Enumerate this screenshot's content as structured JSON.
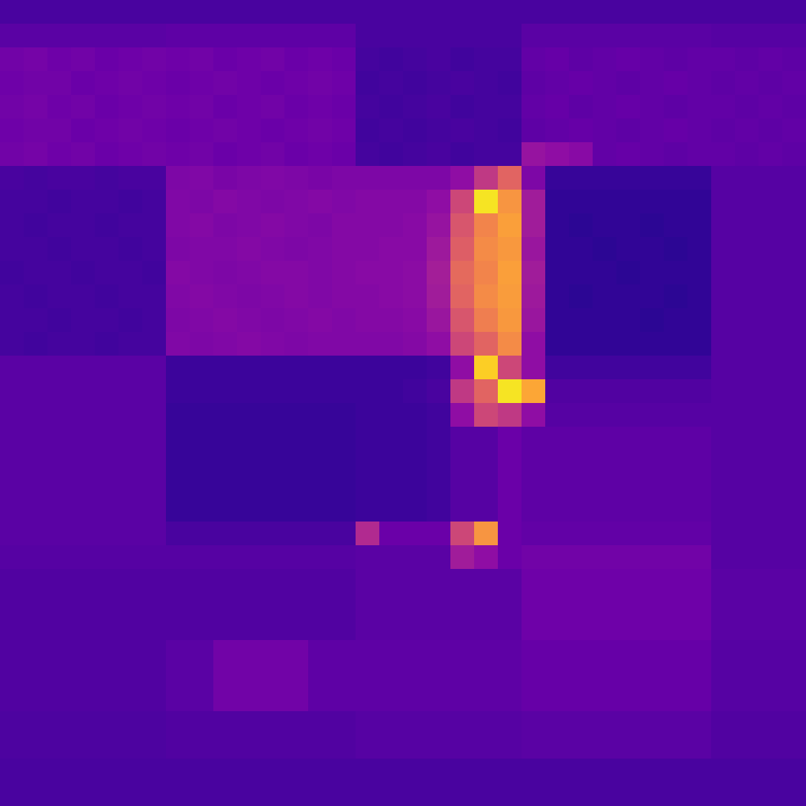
{
  "chart_data": {
    "type": "heatmap",
    "tick_labels": false,
    "zlim": [
      0,
      1
    ],
    "cells": [
      [
        0.12,
        0.12,
        0.12,
        0.12,
        0.12,
        0.12,
        0.12,
        0.12,
        0.12,
        0.12,
        0.12,
        0.12,
        0.12,
        0.12,
        0.12,
        0.12,
        0.12,
        0.12,
        0.12,
        0.12,
        0.12,
        0.12,
        0.12,
        0.12,
        0.12,
        0.12,
        0.12,
        0.12,
        0.12,
        0.12,
        0.12,
        0.12,
        0.12,
        0.12
      ],
      [
        0.16,
        0.16,
        0.16,
        0.16,
        0.16,
        0.16,
        0.16,
        0.17,
        0.17,
        0.17,
        0.17,
        0.17,
        0.17,
        0.17,
        0.17,
        0.12,
        0.12,
        0.12,
        0.12,
        0.12,
        0.12,
        0.12,
        0.16,
        0.16,
        0.16,
        0.16,
        0.16,
        0.16,
        0.16,
        0.16,
        0.15,
        0.15,
        0.15,
        0.15
      ],
      [
        0.22,
        0.23,
        0.21,
        0.22,
        0.2,
        0.21,
        0.22,
        0.21,
        0.22,
        0.2,
        0.21,
        0.22,
        0.2,
        0.21,
        0.2,
        0.11,
        0.1,
        0.11,
        0.12,
        0.1,
        0.11,
        0.11,
        0.18,
        0.19,
        0.17,
        0.18,
        0.19,
        0.18,
        0.17,
        0.18,
        0.18,
        0.17,
        0.18,
        0.17
      ],
      [
        0.21,
        0.22,
        0.22,
        0.2,
        0.21,
        0.22,
        0.21,
        0.2,
        0.21,
        0.22,
        0.21,
        0.2,
        0.21,
        0.22,
        0.21,
        0.1,
        0.11,
        0.1,
        0.11,
        0.12,
        0.11,
        0.1,
        0.17,
        0.18,
        0.19,
        0.18,
        0.17,
        0.18,
        0.19,
        0.18,
        0.17,
        0.18,
        0.17,
        0.18
      ],
      [
        0.22,
        0.23,
        0.21,
        0.22,
        0.2,
        0.21,
        0.22,
        0.21,
        0.22,
        0.2,
        0.21,
        0.22,
        0.2,
        0.21,
        0.2,
        0.11,
        0.1,
        0.11,
        0.12,
        0.1,
        0.11,
        0.11,
        0.18,
        0.19,
        0.17,
        0.18,
        0.19,
        0.18,
        0.17,
        0.18,
        0.18,
        0.17,
        0.18,
        0.17
      ],
      [
        0.21,
        0.22,
        0.22,
        0.2,
        0.21,
        0.22,
        0.21,
        0.2,
        0.21,
        0.22,
        0.21,
        0.2,
        0.21,
        0.22,
        0.21,
        0.1,
        0.11,
        0.1,
        0.11,
        0.12,
        0.11,
        0.1,
        0.17,
        0.18,
        0.19,
        0.18,
        0.17,
        0.18,
        0.19,
        0.18,
        0.17,
        0.18,
        0.17,
        0.18
      ],
      [
        0.22,
        0.23,
        0.21,
        0.22,
        0.2,
        0.21,
        0.22,
        0.21,
        0.22,
        0.2,
        0.21,
        0.22,
        0.2,
        0.21,
        0.2,
        0.11,
        0.1,
        0.11,
        0.12,
        0.1,
        0.11,
        0.11,
        0.32,
        0.3,
        0.28,
        0.18,
        0.19,
        0.18,
        0.17,
        0.18,
        0.18,
        0.17,
        0.18,
        0.17
      ],
      [
        0.12,
        0.11,
        0.12,
        0.12,
        0.11,
        0.12,
        0.12,
        0.25,
        0.26,
        0.24,
        0.25,
        0.26,
        0.25,
        0.24,
        0.25,
        0.25,
        0.25,
        0.25,
        0.25,
        0.3,
        0.45,
        0.6,
        0.25,
        0.08,
        0.08,
        0.08,
        0.08,
        0.08,
        0.08,
        0.08,
        0.15,
        0.15,
        0.15,
        0.15
      ],
      [
        0.11,
        0.11,
        0.1,
        0.11,
        0.11,
        0.1,
        0.11,
        0.26,
        0.25,
        0.27,
        0.26,
        0.25,
        0.26,
        0.27,
        0.26,
        0.27,
        0.27,
        0.27,
        0.3,
        0.5,
        0.95,
        0.75,
        0.35,
        0.07,
        0.07,
        0.07,
        0.07,
        0.07,
        0.07,
        0.07,
        0.15,
        0.15,
        0.15,
        0.15
      ],
      [
        0.11,
        0.1,
        0.11,
        0.11,
        0.1,
        0.11,
        0.11,
        0.26,
        0.27,
        0.25,
        0.26,
        0.27,
        0.26,
        0.25,
        0.27,
        0.27,
        0.27,
        0.28,
        0.32,
        0.55,
        0.7,
        0.78,
        0.35,
        0.07,
        0.06,
        0.07,
        0.07,
        0.06,
        0.07,
        0.07,
        0.15,
        0.15,
        0.15,
        0.15
      ],
      [
        0.11,
        0.11,
        0.1,
        0.11,
        0.11,
        0.1,
        0.11,
        0.25,
        0.26,
        0.26,
        0.27,
        0.26,
        0.25,
        0.26,
        0.27,
        0.27,
        0.28,
        0.28,
        0.34,
        0.58,
        0.72,
        0.76,
        0.33,
        0.07,
        0.07,
        0.06,
        0.07,
        0.07,
        0.06,
        0.07,
        0.15,
        0.15,
        0.15,
        0.15
      ],
      [
        0.1,
        0.11,
        0.11,
        0.1,
        0.11,
        0.11,
        0.1,
        0.27,
        0.26,
        0.25,
        0.26,
        0.27,
        0.27,
        0.26,
        0.27,
        0.28,
        0.28,
        0.29,
        0.36,
        0.62,
        0.7,
        0.78,
        0.35,
        0.07,
        0.07,
        0.07,
        0.06,
        0.07,
        0.07,
        0.07,
        0.15,
        0.15,
        0.15,
        0.15
      ],
      [
        0.11,
        0.1,
        0.11,
        0.11,
        0.1,
        0.11,
        0.11,
        0.26,
        0.27,
        0.26,
        0.25,
        0.26,
        0.27,
        0.26,
        0.27,
        0.27,
        0.28,
        0.29,
        0.35,
        0.6,
        0.72,
        0.77,
        0.34,
        0.07,
        0.06,
        0.07,
        0.07,
        0.07,
        0.06,
        0.07,
        0.15,
        0.15,
        0.15,
        0.15
      ],
      [
        0.11,
        0.11,
        0.1,
        0.11,
        0.11,
        0.1,
        0.11,
        0.25,
        0.26,
        0.27,
        0.26,
        0.25,
        0.26,
        0.27,
        0.26,
        0.27,
        0.27,
        0.28,
        0.33,
        0.55,
        0.68,
        0.76,
        0.33,
        0.07,
        0.07,
        0.07,
        0.07,
        0.06,
        0.07,
        0.07,
        0.15,
        0.15,
        0.15,
        0.15
      ],
      [
        0.11,
        0.1,
        0.11,
        0.11,
        0.1,
        0.11,
        0.11,
        0.26,
        0.25,
        0.26,
        0.27,
        0.26,
        0.25,
        0.26,
        0.26,
        0.26,
        0.26,
        0.27,
        0.3,
        0.5,
        0.6,
        0.72,
        0.3,
        0.07,
        0.07,
        0.07,
        0.07,
        0.07,
        0.07,
        0.07,
        0.15,
        0.15,
        0.15,
        0.15
      ],
      [
        0.16,
        0.16,
        0.16,
        0.16,
        0.16,
        0.16,
        0.16,
        0.09,
        0.09,
        0.09,
        0.09,
        0.09,
        0.09,
        0.09,
        0.09,
        0.09,
        0.09,
        0.09,
        0.1,
        0.3,
        0.9,
        0.5,
        0.3,
        0.1,
        0.1,
        0.1,
        0.1,
        0.1,
        0.1,
        0.1,
        0.15,
        0.15,
        0.15,
        0.15
      ],
      [
        0.16,
        0.16,
        0.16,
        0.16,
        0.16,
        0.16,
        0.16,
        0.09,
        0.09,
        0.09,
        0.09,
        0.09,
        0.09,
        0.09,
        0.09,
        0.09,
        0.09,
        0.1,
        0.12,
        0.45,
        0.6,
        0.95,
        0.8,
        0.14,
        0.14,
        0.14,
        0.14,
        0.14,
        0.14,
        0.14,
        0.15,
        0.15,
        0.15,
        0.15
      ],
      [
        0.16,
        0.16,
        0.16,
        0.16,
        0.16,
        0.16,
        0.16,
        0.08,
        0.08,
        0.08,
        0.08,
        0.08,
        0.08,
        0.08,
        0.08,
        0.09,
        0.09,
        0.09,
        0.1,
        0.3,
        0.5,
        0.45,
        0.3,
        0.15,
        0.15,
        0.15,
        0.15,
        0.15,
        0.15,
        0.15,
        0.15,
        0.15,
        0.15,
        0.15
      ],
      [
        0.16,
        0.16,
        0.16,
        0.16,
        0.16,
        0.16,
        0.16,
        0.08,
        0.08,
        0.08,
        0.08,
        0.08,
        0.08,
        0.08,
        0.08,
        0.09,
        0.09,
        0.09,
        0.1,
        0.15,
        0.15,
        0.2,
        0.17,
        0.17,
        0.17,
        0.17,
        0.17,
        0.17,
        0.17,
        0.17,
        0.15,
        0.15,
        0.15,
        0.15
      ],
      [
        0.16,
        0.16,
        0.16,
        0.16,
        0.16,
        0.16,
        0.16,
        0.08,
        0.08,
        0.08,
        0.08,
        0.08,
        0.08,
        0.08,
        0.08,
        0.09,
        0.09,
        0.09,
        0.1,
        0.15,
        0.15,
        0.2,
        0.17,
        0.17,
        0.17,
        0.17,
        0.17,
        0.17,
        0.17,
        0.17,
        0.15,
        0.15,
        0.15,
        0.15
      ],
      [
        0.16,
        0.16,
        0.16,
        0.16,
        0.16,
        0.16,
        0.16,
        0.08,
        0.08,
        0.08,
        0.08,
        0.08,
        0.08,
        0.08,
        0.08,
        0.09,
        0.09,
        0.09,
        0.1,
        0.15,
        0.15,
        0.2,
        0.17,
        0.17,
        0.17,
        0.17,
        0.17,
        0.17,
        0.17,
        0.17,
        0.15,
        0.15,
        0.15,
        0.15
      ],
      [
        0.16,
        0.16,
        0.16,
        0.16,
        0.16,
        0.16,
        0.16,
        0.08,
        0.08,
        0.08,
        0.08,
        0.08,
        0.08,
        0.08,
        0.08,
        0.09,
        0.09,
        0.09,
        0.1,
        0.15,
        0.15,
        0.2,
        0.17,
        0.17,
        0.17,
        0.17,
        0.17,
        0.17,
        0.17,
        0.17,
        0.15,
        0.15,
        0.15,
        0.15
      ],
      [
        0.16,
        0.16,
        0.16,
        0.16,
        0.16,
        0.16,
        0.16,
        0.12,
        0.12,
        0.12,
        0.12,
        0.12,
        0.12,
        0.12,
        0.12,
        0.4,
        0.2,
        0.2,
        0.2,
        0.5,
        0.75,
        0.2,
        0.18,
        0.18,
        0.18,
        0.18,
        0.18,
        0.18,
        0.18,
        0.18,
        0.15,
        0.15,
        0.15,
        0.15
      ],
      [
        0.15,
        0.15,
        0.15,
        0.15,
        0.15,
        0.15,
        0.15,
        0.15,
        0.15,
        0.15,
        0.15,
        0.15,
        0.15,
        0.15,
        0.15,
        0.16,
        0.16,
        0.16,
        0.16,
        0.35,
        0.3,
        0.2,
        0.22,
        0.22,
        0.22,
        0.22,
        0.22,
        0.22,
        0.22,
        0.22,
        0.15,
        0.15,
        0.15,
        0.15
      ],
      [
        0.14,
        0.14,
        0.14,
        0.14,
        0.14,
        0.14,
        0.14,
        0.14,
        0.14,
        0.14,
        0.14,
        0.14,
        0.14,
        0.14,
        0.14,
        0.16,
        0.16,
        0.16,
        0.16,
        0.16,
        0.16,
        0.16,
        0.21,
        0.21,
        0.21,
        0.21,
        0.21,
        0.21,
        0.21,
        0.21,
        0.16,
        0.16,
        0.16,
        0.16
      ],
      [
        0.14,
        0.14,
        0.14,
        0.14,
        0.14,
        0.14,
        0.14,
        0.14,
        0.14,
        0.14,
        0.14,
        0.14,
        0.14,
        0.14,
        0.14,
        0.16,
        0.16,
        0.16,
        0.16,
        0.16,
        0.16,
        0.16,
        0.21,
        0.21,
        0.21,
        0.21,
        0.21,
        0.21,
        0.21,
        0.21,
        0.16,
        0.16,
        0.16,
        0.16
      ],
      [
        0.14,
        0.14,
        0.14,
        0.14,
        0.14,
        0.14,
        0.14,
        0.14,
        0.14,
        0.14,
        0.14,
        0.14,
        0.14,
        0.14,
        0.14,
        0.16,
        0.16,
        0.16,
        0.16,
        0.16,
        0.16,
        0.16,
        0.21,
        0.21,
        0.21,
        0.21,
        0.21,
        0.21,
        0.21,
        0.21,
        0.16,
        0.16,
        0.16,
        0.16
      ],
      [
        0.14,
        0.14,
        0.14,
        0.14,
        0.14,
        0.14,
        0.14,
        0.16,
        0.16,
        0.22,
        0.22,
        0.22,
        0.22,
        0.17,
        0.17,
        0.17,
        0.17,
        0.17,
        0.17,
        0.17,
        0.17,
        0.17,
        0.19,
        0.19,
        0.19,
        0.19,
        0.19,
        0.19,
        0.19,
        0.19,
        0.15,
        0.15,
        0.15,
        0.15
      ],
      [
        0.14,
        0.14,
        0.14,
        0.14,
        0.14,
        0.14,
        0.14,
        0.16,
        0.16,
        0.22,
        0.22,
        0.22,
        0.22,
        0.17,
        0.17,
        0.17,
        0.17,
        0.17,
        0.17,
        0.17,
        0.17,
        0.17,
        0.19,
        0.19,
        0.19,
        0.19,
        0.19,
        0.19,
        0.19,
        0.19,
        0.15,
        0.15,
        0.15,
        0.15
      ],
      [
        0.14,
        0.14,
        0.14,
        0.14,
        0.14,
        0.14,
        0.14,
        0.16,
        0.16,
        0.22,
        0.22,
        0.22,
        0.22,
        0.17,
        0.17,
        0.17,
        0.17,
        0.17,
        0.17,
        0.17,
        0.17,
        0.17,
        0.19,
        0.19,
        0.19,
        0.19,
        0.19,
        0.19,
        0.19,
        0.19,
        0.15,
        0.15,
        0.15,
        0.15
      ],
      [
        0.13,
        0.13,
        0.13,
        0.13,
        0.13,
        0.13,
        0.13,
        0.14,
        0.14,
        0.14,
        0.14,
        0.14,
        0.14,
        0.14,
        0.14,
        0.15,
        0.15,
        0.15,
        0.15,
        0.15,
        0.15,
        0.15,
        0.16,
        0.16,
        0.16,
        0.16,
        0.16,
        0.16,
        0.16,
        0.16,
        0.14,
        0.14,
        0.14,
        0.14
      ],
      [
        0.13,
        0.13,
        0.13,
        0.13,
        0.13,
        0.13,
        0.13,
        0.14,
        0.14,
        0.14,
        0.14,
        0.14,
        0.14,
        0.14,
        0.14,
        0.15,
        0.15,
        0.15,
        0.15,
        0.15,
        0.15,
        0.15,
        0.16,
        0.16,
        0.16,
        0.16,
        0.16,
        0.16,
        0.16,
        0.16,
        0.14,
        0.14,
        0.14,
        0.14
      ],
      [
        0.12,
        0.12,
        0.12,
        0.12,
        0.12,
        0.12,
        0.12,
        0.12,
        0.12,
        0.12,
        0.12,
        0.12,
        0.12,
        0.12,
        0.12,
        0.12,
        0.12,
        0.12,
        0.12,
        0.12,
        0.12,
        0.12,
        0.12,
        0.12,
        0.12,
        0.12,
        0.12,
        0.12,
        0.12,
        0.12,
        0.12,
        0.12,
        0.12,
        0.12
      ],
      [
        0.12,
        0.12,
        0.12,
        0.12,
        0.12,
        0.12,
        0.12,
        0.12,
        0.12,
        0.12,
        0.12,
        0.12,
        0.12,
        0.12,
        0.12,
        0.12,
        0.12,
        0.12,
        0.12,
        0.12,
        0.12,
        0.12,
        0.12,
        0.12,
        0.12,
        0.12,
        0.12,
        0.12,
        0.12,
        0.12,
        0.12,
        0.12,
        0.12,
        0.12
      ]
    ]
  }
}
